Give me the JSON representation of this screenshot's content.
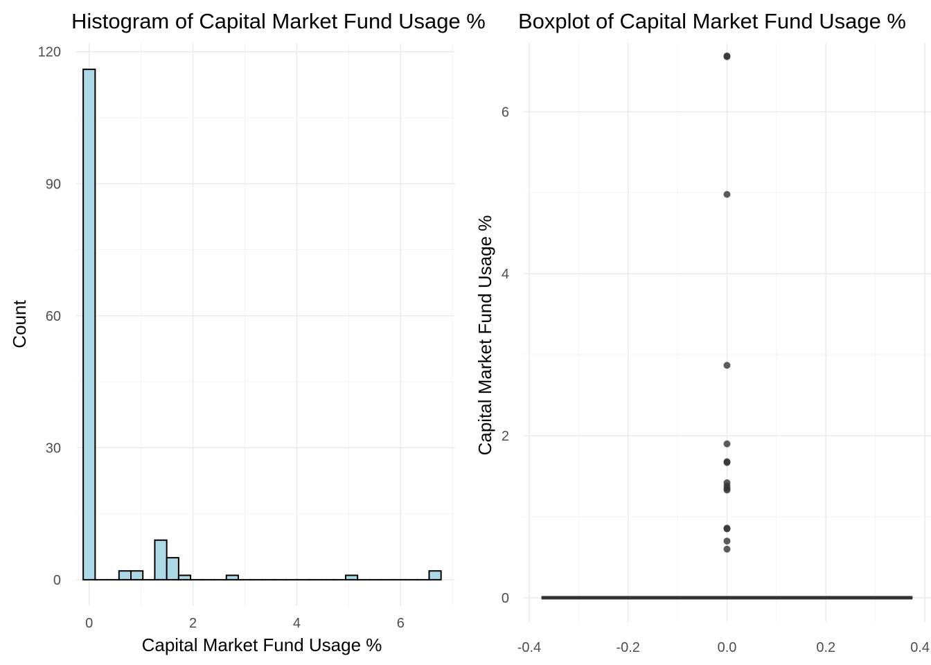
{
  "chart_data": [
    {
      "type": "bar",
      "subtype": "histogram",
      "title": "Histogram of Capital Market Fund Usage %",
      "xlabel": "Capital Market Fund Usage %",
      "ylabel": "Count",
      "xlim": [
        -0.25,
        7.05
      ],
      "ylim": [
        -6,
        122
      ],
      "xticks": [
        0,
        2,
        4,
        6
      ],
      "yticks": [
        0,
        30,
        60,
        90,
        120
      ],
      "grid": true,
      "bin_width": 0.2298,
      "bins": [
        {
          "x": 0.0,
          "count": 116
        },
        {
          "x": 0.2298,
          "count": 0
        },
        {
          "x": 0.4596,
          "count": 0
        },
        {
          "x": 0.6894,
          "count": 2
        },
        {
          "x": 0.9192,
          "count": 2
        },
        {
          "x": 1.149,
          "count": 0
        },
        {
          "x": 1.3788,
          "count": 9
        },
        {
          "x": 1.6086,
          "count": 5
        },
        {
          "x": 1.8384,
          "count": 1
        },
        {
          "x": 2.0682,
          "count": 0
        },
        {
          "x": 2.298,
          "count": 0
        },
        {
          "x": 2.5278,
          "count": 0
        },
        {
          "x": 2.7576,
          "count": 1
        },
        {
          "x": 2.9874,
          "count": 0
        },
        {
          "x": 3.2172,
          "count": 0
        },
        {
          "x": 3.447,
          "count": 0
        },
        {
          "x": 3.6768,
          "count": 0
        },
        {
          "x": 3.9066,
          "count": 0
        },
        {
          "x": 4.1364,
          "count": 0
        },
        {
          "x": 4.3662,
          "count": 0
        },
        {
          "x": 4.596,
          "count": 0
        },
        {
          "x": 4.8258,
          "count": 0
        },
        {
          "x": 5.0556,
          "count": 1
        },
        {
          "x": 5.2854,
          "count": 0
        },
        {
          "x": 5.5152,
          "count": 0
        },
        {
          "x": 5.745,
          "count": 0
        },
        {
          "x": 5.9748,
          "count": 0
        },
        {
          "x": 6.2046,
          "count": 0
        },
        {
          "x": 6.4344,
          "count": 0
        },
        {
          "x": 6.6642,
          "count": 2
        }
      ],
      "colors": {
        "fill": "#add8e6",
        "stroke": "#000000"
      }
    },
    {
      "type": "boxplot",
      "title": "Boxplot of Capital Market Fund Usage %",
      "xlabel": "",
      "ylabel": "Capital Market Fund Usage %",
      "xlim": [
        -0.4125,
        0.4125
      ],
      "ylim": [
        -0.3,
        6.85
      ],
      "xticks": [
        -0.4,
        -0.2,
        0.0,
        0.2,
        0.4
      ],
      "xtick_labels": [
        "-0.4",
        "-0.2",
        "0.0",
        "0.2",
        "0.4"
      ],
      "yticks": [
        0,
        2,
        4,
        6
      ],
      "grid": true,
      "box": {
        "x": 0.0,
        "q1": 0,
        "median": 0,
        "q3": 0,
        "whisker_low": 0,
        "whisker_high": 0,
        "half_width": 0.375
      },
      "outliers": [
        6.69,
        6.68,
        4.98,
        2.87,
        1.9,
        1.68,
        1.67,
        1.42,
        1.38,
        1.35,
        1.33,
        0.86,
        0.85,
        0.7,
        0.6
      ],
      "colors": {
        "box": "#333333",
        "outlier": "#333333"
      }
    }
  ]
}
